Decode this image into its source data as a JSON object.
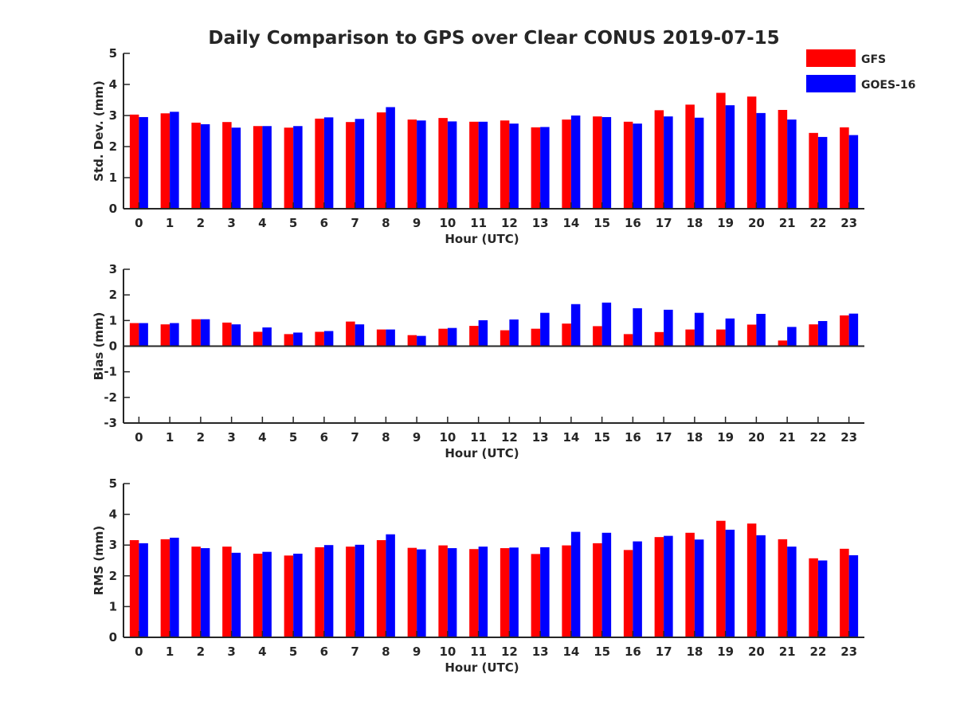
{
  "title": "Daily Comparison to GPS over Clear CONUS 2019-07-15",
  "colors": {
    "gfs": "#ff0000",
    "goes": "#0000ff",
    "axis": "#262626"
  },
  "legend": {
    "position": "top-right",
    "items": [
      {
        "label": "GFS",
        "color": "#ff0000"
      },
      {
        "label": "GOES-16",
        "color": "#0000ff"
      }
    ]
  },
  "chart_data": [
    {
      "type": "bar",
      "ylabel": "Std. Dev. (mm)",
      "xlabel": "Hour (UTC)",
      "ylim": [
        0,
        5
      ],
      "yticks": [
        "0",
        "1",
        "2",
        "3",
        "4",
        "5"
      ],
      "categories": [
        "0",
        "1",
        "2",
        "3",
        "4",
        "5",
        "6",
        "7",
        "8",
        "9",
        "10",
        "11",
        "12",
        "13",
        "14",
        "15",
        "16",
        "17",
        "18",
        "19",
        "20",
        "21",
        "22",
        "23"
      ],
      "series": [
        {
          "name": "GFS",
          "values": [
            3.03,
            3.07,
            2.77,
            2.79,
            2.66,
            2.61,
            2.9,
            2.79,
            3.1,
            2.87,
            2.92,
            2.8,
            2.84,
            2.62,
            2.87,
            2.97,
            2.8,
            3.17,
            3.35,
            3.73,
            3.61,
            3.18,
            2.44,
            2.62
          ]
        },
        {
          "name": "GOES-16",
          "values": [
            2.95,
            3.12,
            2.72,
            2.61,
            2.66,
            2.66,
            2.94,
            2.89,
            3.27,
            2.84,
            2.81,
            2.8,
            2.74,
            2.63,
            3.0,
            2.95,
            2.74,
            2.97,
            2.93,
            3.33,
            3.08,
            2.87,
            2.31,
            2.37
          ]
        }
      ]
    },
    {
      "type": "bar",
      "ylabel": "Bias (mm)",
      "xlabel": "Hour (UTC)",
      "ylim": [
        -3,
        3
      ],
      "yticks": [
        "-3",
        "-2",
        "-1",
        "0",
        "1",
        "2",
        "3"
      ],
      "categories": [
        "0",
        "1",
        "2",
        "3",
        "4",
        "5",
        "6",
        "7",
        "8",
        "9",
        "10",
        "11",
        "12",
        "13",
        "14",
        "15",
        "16",
        "17",
        "18",
        "19",
        "20",
        "21",
        "22",
        "23"
      ],
      "series": [
        {
          "name": "GFS",
          "values": [
            0.9,
            0.85,
            1.05,
            0.92,
            0.56,
            0.47,
            0.56,
            0.96,
            0.65,
            0.43,
            0.68,
            0.79,
            0.62,
            0.68,
            0.88,
            0.78,
            0.47,
            0.55,
            0.65,
            0.65,
            0.84,
            0.22,
            0.85,
            1.2
          ]
        },
        {
          "name": "GOES-16",
          "values": [
            0.9,
            0.9,
            1.05,
            0.85,
            0.73,
            0.53,
            0.59,
            0.85,
            0.65,
            0.4,
            0.71,
            1.01,
            1.04,
            1.3,
            1.64,
            1.7,
            1.48,
            1.42,
            1.3,
            1.08,
            1.26,
            0.75,
            0.98,
            1.27
          ]
        }
      ]
    },
    {
      "type": "bar",
      "ylabel": "RMS (mm)",
      "xlabel": "Hour (UTC)",
      "ylim": [
        0,
        5
      ],
      "yticks": [
        "0",
        "1",
        "2",
        "3",
        "4",
        "5"
      ],
      "categories": [
        "0",
        "1",
        "2",
        "3",
        "4",
        "5",
        "6",
        "7",
        "8",
        "9",
        "10",
        "11",
        "12",
        "13",
        "14",
        "15",
        "16",
        "17",
        "18",
        "19",
        "20",
        "21",
        "22",
        "23"
      ],
      "series": [
        {
          "name": "GFS",
          "values": [
            3.16,
            3.19,
            2.95,
            2.95,
            2.72,
            2.66,
            2.93,
            2.95,
            3.16,
            2.91,
            2.99,
            2.87,
            2.9,
            2.71,
            2.99,
            3.06,
            2.84,
            3.26,
            3.4,
            3.79,
            3.7,
            3.19,
            2.57,
            2.88
          ]
        },
        {
          "name": "GOES-16",
          "values": [
            3.06,
            3.24,
            2.9,
            2.75,
            2.78,
            2.72,
            3.0,
            3.01,
            3.35,
            2.86,
            2.9,
            2.95,
            2.92,
            2.93,
            3.43,
            3.4,
            3.12,
            3.3,
            3.18,
            3.5,
            3.32,
            2.95,
            2.5,
            2.67
          ]
        }
      ]
    }
  ]
}
